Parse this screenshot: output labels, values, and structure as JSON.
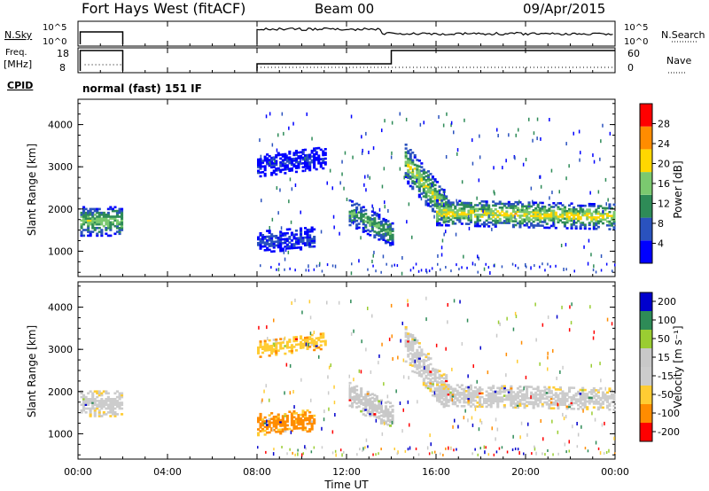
{
  "header": {
    "station": "Fort Hays West (fitACF)",
    "beam": "Beam 00",
    "date": "09/Apr/2015"
  },
  "status_panels": {
    "nsky_label": "N.Sky",
    "nsky_ticks": [
      "10^5",
      "10^0"
    ],
    "nsearch_label": "N.Search",
    "nsearch_ticks": [
      "10^5",
      "10^0"
    ],
    "freq_label_line1": "Freq.",
    "freq_label_line2": "[MHz]",
    "freq_ticks": [
      "18",
      "8"
    ],
    "nave_label": "Nave",
    "nave_ticks": [
      "60",
      "0"
    ],
    "cpid_label": "CPID",
    "cpid_text": "normal (fast) 151 IF"
  },
  "colors": {
    "power_scale": [
      "#0000ff",
      "#2a52be",
      "#2e8b57",
      "#7bc96f",
      "#ffd700",
      "#ff8c00",
      "#ff0000"
    ],
    "velocity_scale": [
      "#ff0000",
      "#ff8c00",
      "#ffcc33",
      "#cccccc",
      "#c8c8c8",
      "#9acd32",
      "#2e8b57",
      "#0000cd"
    ],
    "ground_scatter": "#d0d0d0"
  },
  "chart_data": [
    {
      "type": "heatmap",
      "name": "power",
      "ylabel": "Slant Range [km]",
      "yticks": [
        "1000",
        "2000",
        "3000",
        "4000"
      ],
      "ylim": [
        400,
        4600
      ],
      "xlim": [
        0,
        24
      ],
      "colorbar_label": "Power [dB]",
      "colorbar_ticks": [
        "4",
        "8",
        "12",
        "16",
        "20",
        "24",
        "28"
      ],
      "colorbar_range": [
        0,
        31
      ],
      "bands": [
        {
          "t0": 0.1,
          "t1": 2.0,
          "r_start": 1700,
          "r_end": 1700,
          "width": 700,
          "level": 16
        },
        {
          "t0": 8.0,
          "t1": 10.5,
          "r_start": 1200,
          "r_end": 1300,
          "width": 500,
          "level": 6
        },
        {
          "t0": 8.0,
          "t1": 11.0,
          "r_start": 3000,
          "r_end": 3200,
          "width": 500,
          "level": 4
        },
        {
          "t0": 12.1,
          "t1": 14.0,
          "r_start": 1900,
          "r_end": 1400,
          "width": 600,
          "level": 14
        },
        {
          "t0": 14.6,
          "t1": 16.5,
          "r_start": 3100,
          "r_end": 1900,
          "width": 900,
          "level": 18
        },
        {
          "t0": 16.0,
          "t1": 24.0,
          "r_start": 1900,
          "r_end": 1800,
          "width": 600,
          "level": 20
        }
      ]
    },
    {
      "type": "heatmap",
      "name": "velocity",
      "ylabel": "Slant Range [km]",
      "yticks": [
        "1000",
        "2000",
        "3000",
        "4000"
      ],
      "ylim": [
        400,
        4600
      ],
      "xlim": [
        0,
        24
      ],
      "xlabel": "Time UT",
      "xticks": [
        "00:00",
        "04:00",
        "08:00",
        "12:00",
        "16:00",
        "20:00",
        "00:00"
      ],
      "colorbar_label": "Velocity [m s⁻¹]",
      "colorbar_ticks": [
        "200",
        "100",
        "50",
        "15",
        "-15",
        "-50",
        "-100",
        "-200"
      ],
      "bands": [
        {
          "t0": 0.1,
          "t1": 2.0,
          "r_start": 1700,
          "r_end": 1700,
          "width": 600,
          "v": 0
        },
        {
          "t0": 8.0,
          "t1": 10.5,
          "r_start": 1200,
          "r_end": 1300,
          "width": 500,
          "v": -60
        },
        {
          "t0": 8.0,
          "t1": 11.0,
          "r_start": 3000,
          "r_end": 3200,
          "width": 400,
          "v": -40
        },
        {
          "t0": 12.1,
          "t1": 14.0,
          "r_start": 1900,
          "r_end": 1400,
          "width": 600,
          "v": 30
        },
        {
          "t0": 14.6,
          "t1": 16.5,
          "r_start": 3100,
          "r_end": 1900,
          "width": 900,
          "v": 0
        },
        {
          "t0": 16.0,
          "t1": 24.0,
          "r_start": 1900,
          "r_end": 1800,
          "width": 500,
          "v": 0
        }
      ]
    }
  ]
}
